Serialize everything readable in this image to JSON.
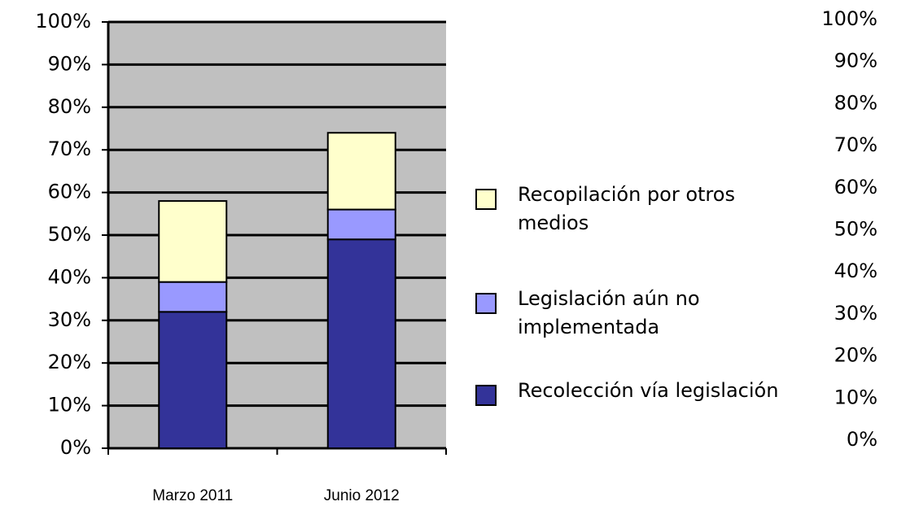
{
  "chart_data": {
    "type": "stacked_bar",
    "categories": [
      "Marzo 2011",
      "Junio 2012"
    ],
    "series": [
      {
        "name": "Recolección vía legislación",
        "color": "#333399",
        "values": [
          32,
          49
        ]
      },
      {
        "name": "Legislación aún no implementada",
        "color": "#9999ff",
        "values": [
          7,
          7
        ]
      },
      {
        "name": "Recopilación por otros medios",
        "color": "#ffffcc",
        "values": [
          19,
          18
        ]
      }
    ],
    "ylim": [
      0,
      100
    ],
    "yticks": [
      {
        "value": 0,
        "label": "0%"
      },
      {
        "value": 10,
        "label": "10%"
      },
      {
        "value": 20,
        "label": "20%"
      },
      {
        "value": 30,
        "label": "30%"
      },
      {
        "value": 40,
        "label": "40%"
      },
      {
        "value": 50,
        "label": "50%"
      },
      {
        "value": 60,
        "label": "60%"
      },
      {
        "value": 70,
        "label": "70%"
      },
      {
        "value": 80,
        "label": "80%"
      },
      {
        "value": 90,
        "label": "90%"
      },
      {
        "value": 100,
        "label": "100%"
      }
    ],
    "y2lim": [
      0,
      100
    ],
    "y2ticks": [
      {
        "value": 0,
        "label": "0%"
      },
      {
        "value": 10,
        "label": "10%"
      },
      {
        "value": 20,
        "label": "20%"
      },
      {
        "value": 30,
        "label": "30%"
      },
      {
        "value": 40,
        "label": "40%"
      },
      {
        "value": 50,
        "label": "50%"
      },
      {
        "value": 60,
        "label": "60%"
      },
      {
        "value": 70,
        "label": "70%"
      },
      {
        "value": 80,
        "label": "80%"
      },
      {
        "value": 90,
        "label": "90%"
      },
      {
        "value": 100,
        "label": "100%"
      }
    ],
    "grid": true,
    "plot_background": "#c0c0c0",
    "legend": "right"
  }
}
